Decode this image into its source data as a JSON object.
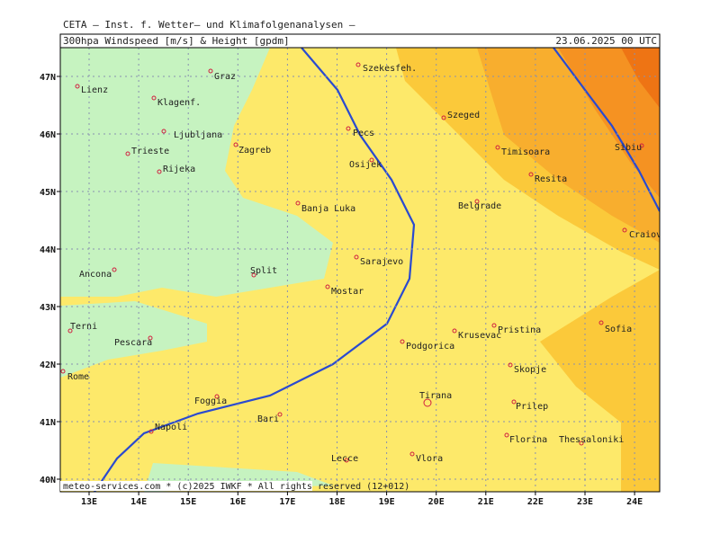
{
  "header": {
    "institute": "CETA – Inst. f. Wetter– und Klimafolgenanalysen –",
    "product": "300hpa Windspeed [m/s] & Height [gpdm]",
    "valid": "23.06.2025 00 UTC"
  },
  "axes": {
    "lat": [
      "47N",
      "46N",
      "45N",
      "44N",
      "43N",
      "42N",
      "41N",
      "40N"
    ],
    "lon": [
      "13E",
      "14E",
      "15E",
      "16E",
      "17E",
      "18E",
      "19E",
      "20E",
      "21E",
      "22E",
      "23E",
      "24E"
    ]
  },
  "cities": [
    "Lienz",
    "Graz",
    "Szekesfeh.",
    "Klagenf.",
    "Ljubljana",
    "Zagreb",
    "Pecs",
    "Szeged",
    "Trieste",
    "Timisoara",
    "Osijek",
    "Rijeka",
    "Resita",
    "Sibiu",
    "Banja Luka",
    "Belgrade",
    "Craiova",
    "Sarajevo",
    "Ancona",
    "Split",
    "Mostar",
    "Sofia",
    "Terni",
    "Pristina",
    "Krusevac",
    "Pescara",
    "Podgorica",
    "Rome",
    "Skopje",
    "Tirana",
    "Foggia",
    "Prilep",
    "Bari",
    "Napoli",
    "Florina",
    "Thessaloniki",
    "Vlora",
    "Lecce"
  ],
  "footer": "meteo-services.com * (c)2025 IWKF * All rights reserved (12+012)"
}
